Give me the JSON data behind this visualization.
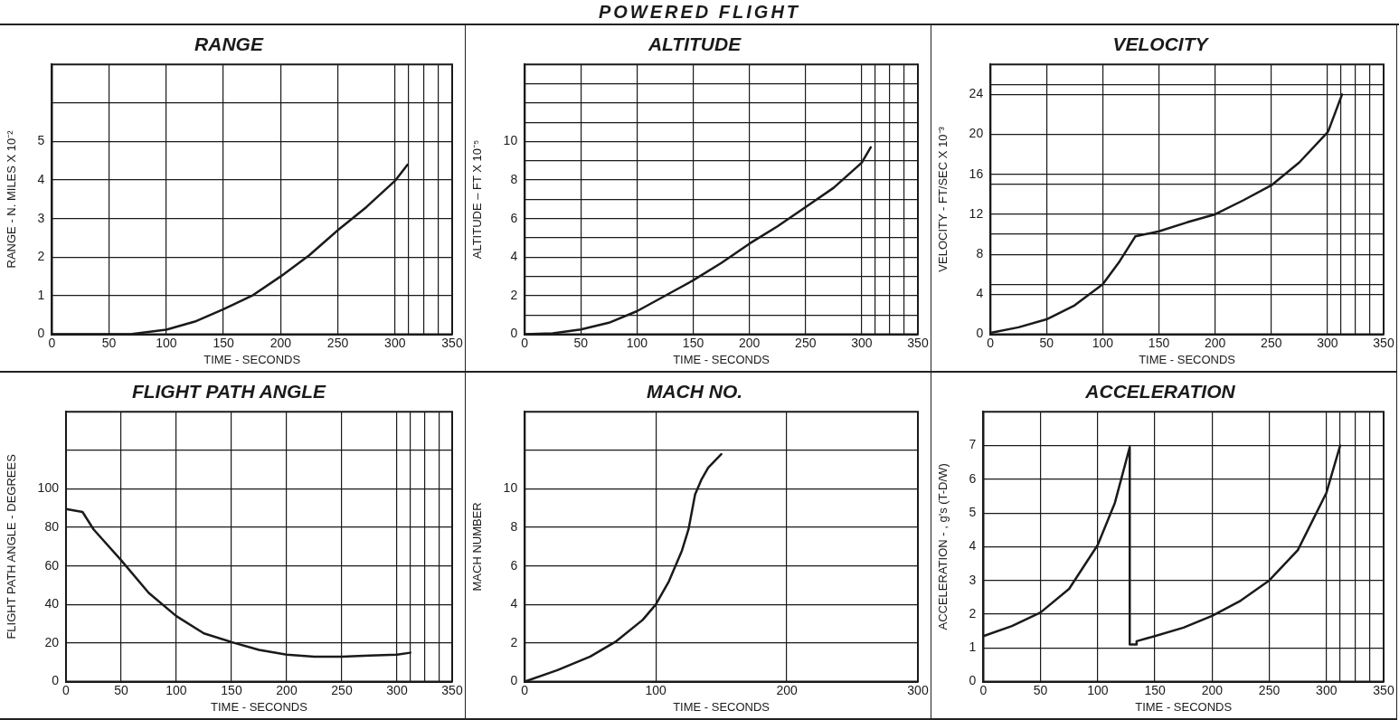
{
  "chart_data": [
    {
      "type": "other",
      "title": "POWERED FLIGHT"
    },
    {
      "type": "line",
      "title": "RANGE",
      "xlabel": "TIME - SECONDS",
      "ylabel": "RANGE - N. MILES X 10⁻²",
      "xlim": [
        0,
        350
      ],
      "ylim": [
        0,
        7
      ],
      "xticks": [
        0,
        50,
        100,
        150,
        200,
        250,
        300,
        {
          "value": 312,
          "label": null
        },
        {
          "value": 325,
          "label": null
        },
        {
          "value": 338,
          "label": null
        },
        350
      ],
      "yticks": [
        0,
        1,
        2,
        3,
        4,
        5,
        {
          "value": 6,
          "label": null
        }
      ],
      "grid": true,
      "marker": "none",
      "line_style": "solid",
      "series": [
        {
          "color": "#1a1a1a",
          "x": [
            0,
            50,
            70,
            100,
            125,
            150,
            175,
            200,
            225,
            250,
            275,
            300,
            311
          ],
          "values": [
            0,
            0,
            0.01,
            0.12,
            0.33,
            0.65,
            1.0,
            1.5,
            2.05,
            2.7,
            3.3,
            3.98,
            4.4
          ]
        }
      ]
    },
    {
      "type": "line",
      "title": "ALTITUDE",
      "xlabel": "TIME - SECONDS",
      "ylabel": "ALTITUDE – FT X 10⁻⁵",
      "xlim": [
        0,
        350
      ],
      "ylim": [
        0,
        14
      ],
      "xticks": [
        0,
        50,
        100,
        150,
        200,
        250,
        300,
        {
          "value": 312,
          "label": null
        },
        {
          "value": 325,
          "label": null
        },
        {
          "value": 338,
          "label": null
        },
        350
      ],
      "yticks": [
        0,
        {
          "value": 1,
          "label": null
        },
        2,
        {
          "value": 3,
          "label": null
        },
        4,
        {
          "value": 5,
          "label": null
        },
        6,
        {
          "value": 7,
          "label": null
        },
        8,
        {
          "value": 9,
          "label": null
        },
        10,
        {
          "value": 11,
          "label": null
        },
        {
          "value": 12,
          "label": null
        },
        {
          "value": 13,
          "label": null
        }
      ],
      "grid": true,
      "marker": "none",
      "line_style": "solid",
      "series": [
        {
          "color": "#1a1a1a",
          "x": [
            0,
            25,
            50,
            75,
            100,
            125,
            150,
            175,
            200,
            225,
            250,
            275,
            300,
            308
          ],
          "values": [
            0,
            0.05,
            0.25,
            0.6,
            1.2,
            2.0,
            2.8,
            3.7,
            4.7,
            5.6,
            6.6,
            7.6,
            8.9,
            9.7
          ]
        }
      ]
    },
    {
      "type": "line",
      "title": "VELOCITY",
      "xlabel": "TIME - SECONDS",
      "ylabel": "VELOCITY - FT/SEC X 10⁻³",
      "xlim": [
        0,
        350
      ],
      "ylim": [
        0,
        27
      ],
      "xticks": [
        0,
        50,
        100,
        150,
        200,
        250,
        300,
        {
          "value": 312,
          "label": null
        },
        {
          "value": 325,
          "label": null
        },
        {
          "value": 338,
          "label": null
        },
        350
      ],
      "yticks": [
        0,
        4,
        {
          "value": 5,
          "label": null
        },
        8,
        {
          "value": 10,
          "label": null
        },
        12,
        {
          "value": 15,
          "label": null
        },
        16,
        20,
        24,
        {
          "value": 25,
          "label": null
        }
      ],
      "grid": true,
      "marker": "none",
      "line_style": "solid",
      "series": [
        {
          "color": "#1a1a1a",
          "x": [
            0,
            25,
            50,
            75,
            100,
            115,
            129,
            150,
            175,
            200,
            225,
            250,
            275,
            300,
            301,
            313
          ],
          "values": [
            0.15,
            0.7,
            1.5,
            2.9,
            5.0,
            7.3,
            9.8,
            10.3,
            11.2,
            12.0,
            13.4,
            14.9,
            17.2,
            20.2,
            20.4,
            24.0
          ]
        }
      ]
    },
    {
      "type": "line",
      "title": "FLIGHT PATH ANGLE",
      "xlabel": "TIME - SECONDS",
      "ylabel": "FLIGHT PATH ANGLE - DEGREES",
      "xlim": [
        0,
        350
      ],
      "ylim": [
        0,
        140
      ],
      "xticks": [
        0,
        50,
        100,
        150,
        200,
        250,
        300,
        {
          "value": 312,
          "label": null
        },
        {
          "value": 325,
          "label": null
        },
        {
          "value": 338,
          "label": null
        },
        350
      ],
      "yticks": [
        0,
        20,
        40,
        60,
        80,
        100,
        {
          "value": 120,
          "label": null
        }
      ],
      "grid": true,
      "marker": "none",
      "line_style": "solid",
      "series": [
        {
          "color": "#1a1a1a",
          "x": [
            0,
            15,
            25,
            50,
            75,
            100,
            125,
            150,
            175,
            200,
            225,
            250,
            275,
            300,
            312
          ],
          "values": [
            89.5,
            88,
            79,
            63,
            46,
            34,
            25,
            20.5,
            16.5,
            14,
            13,
            13,
            13.5,
            14,
            15
          ]
        }
      ]
    },
    {
      "type": "line",
      "title": "MACH NO.",
      "xlabel": "TIME - SECONDS",
      "ylabel": "MACH NUMBER",
      "xlim": [
        0,
        300
      ],
      "ylim": [
        0,
        14
      ],
      "xticks": [
        0,
        100,
        200,
        300
      ],
      "yticks": [
        0,
        2,
        4,
        6,
        8,
        10,
        {
          "value": 12,
          "label": null
        }
      ],
      "grid": true,
      "marker": "none",
      "line_style": "solid",
      "series": [
        {
          "color": "#1a1a1a",
          "x": [
            0,
            25,
            50,
            70,
            90,
            100,
            110,
            120,
            125,
            130,
            135,
            140,
            150
          ],
          "values": [
            0,
            0.6,
            1.3,
            2.1,
            3.2,
            4.0,
            5.2,
            6.8,
            7.9,
            9.7,
            10.5,
            11.1,
            11.8
          ]
        }
      ]
    },
    {
      "type": "line",
      "title": "ACCELERATION",
      "xlabel": "TIME - SECONDS",
      "ylabel": "ACCELERATION - , g's (T-D/W)",
      "xlim": [
        0,
        350
      ],
      "ylim": [
        0,
        8
      ],
      "xticks": [
        0,
        50,
        100,
        150,
        200,
        250,
        300,
        {
          "value": 312,
          "label": null
        },
        {
          "value": 325,
          "label": null
        },
        {
          "value": 338,
          "label": null
        },
        350
      ],
      "yticks": [
        0,
        1,
        2,
        3,
        4,
        5,
        6,
        7
      ],
      "grid": true,
      "marker": "none",
      "line_style": "solid",
      "series": [
        {
          "color": "#1a1a1a",
          "x": [
            0,
            25,
            50,
            75,
            100,
            115,
            128,
            128,
            134,
            134,
            150,
            175,
            200,
            225,
            250,
            275,
            300,
            312
          ],
          "values": [
            1.35,
            1.65,
            2.05,
            2.75,
            4.05,
            5.3,
            6.95,
            1.1,
            1.1,
            1.2,
            1.35,
            1.6,
            1.95,
            2.4,
            3.0,
            3.9,
            5.6,
            7.0
          ]
        }
      ]
    }
  ]
}
